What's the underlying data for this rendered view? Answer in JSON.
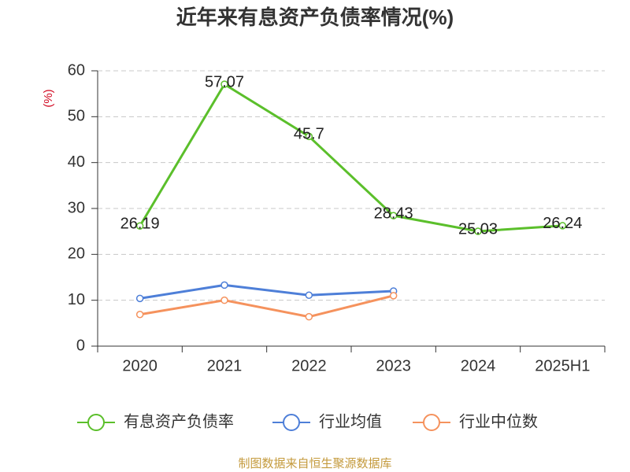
{
  "chart_data": {
    "type": "line",
    "title": "近年来有息资产负债率情况(%)",
    "ylabel": "(%)",
    "categories": [
      "2020",
      "2021",
      "2022",
      "2023",
      "2024",
      "2025H1"
    ],
    "ylim": [
      0,
      60
    ],
    "yticks": [
      0,
      10,
      20,
      30,
      40,
      50,
      60
    ],
    "grid": true,
    "legend_position": "bottom",
    "series": [
      {
        "name": "有息资产负债率",
        "values": [
          26.19,
          57.07,
          45.7,
          28.43,
          25.03,
          26.24
        ],
        "color": "#5bbf2b",
        "show_labels": true
      },
      {
        "name": "行业均值",
        "values": [
          10.4,
          13.3,
          11.1,
          12.0,
          null,
          null
        ],
        "color": "#4e7fd8",
        "show_labels": false
      },
      {
        "name": "行业中位数",
        "values": [
          6.9,
          10.0,
          6.4,
          11.0,
          null,
          null
        ],
        "color": "#f5925d",
        "show_labels": false
      }
    ]
  },
  "source_note": "制图数据来自恒生聚源数据库"
}
